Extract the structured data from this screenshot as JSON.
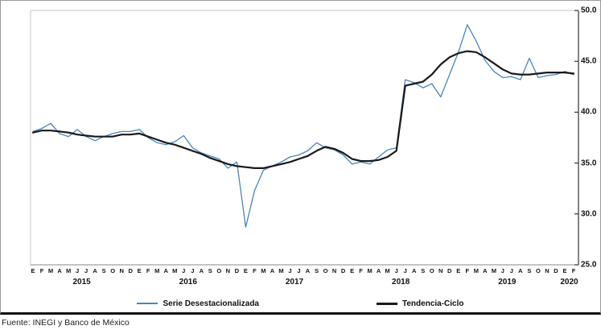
{
  "figure": {
    "source_note": "Fuente: INEGI y Banco de México"
  },
  "legend": [
    {
      "label": "Serie Desestacionalizada",
      "color": "#4a85bb"
    },
    {
      "label": "Tendencia-Ciclo",
      "color": "#1a1a1a"
    }
  ],
  "chart_data": {
    "type": "line",
    "title": "",
    "xlabel": "",
    "ylabel": "",
    "grid": false,
    "legend_position": "bottom",
    "y_axis": {
      "side": "right",
      "min": 25,
      "max": 50,
      "tick_labels": [
        "50.0",
        "45.0",
        "40.0",
        "35.0",
        "30.0",
        "25.0"
      ],
      "tick_values": [
        50,
        45,
        40,
        35,
        30,
        25
      ]
    },
    "x_axis": {
      "month_letters_pattern": [
        "E",
        "F",
        "M",
        "A",
        "M",
        "J",
        "J",
        "A",
        "S",
        "O",
        "N",
        "D"
      ],
      "year_groups": [
        {
          "label": "2015",
          "months": 12
        },
        {
          "label": "2016",
          "months": 12
        },
        {
          "label": "2017",
          "months": 12
        },
        {
          "label": "2018",
          "months": 12
        },
        {
          "label": "2019",
          "months": 12
        },
        {
          "label": "2020",
          "months": 2
        }
      ]
    },
    "series": [
      {
        "name": "Serie Desestacionalizada",
        "color": "#4a85bb",
        "stroke_width": 1.3,
        "values": [
          38.1,
          38.4,
          38.9,
          37.9,
          37.6,
          38.3,
          37.6,
          37.2,
          37.6,
          37.9,
          38.1,
          38.1,
          38.3,
          37.5,
          37.0,
          36.8,
          37.1,
          37.7,
          36.5,
          36.0,
          35.7,
          35.4,
          34.5,
          35.1,
          28.7,
          32.3,
          34.3,
          34.7,
          35.1,
          35.6,
          35.8,
          36.2,
          37.0,
          36.5,
          36.3,
          35.8,
          34.9,
          35.1,
          34.9,
          35.6,
          36.3,
          36.5,
          43.2,
          42.9,
          42.4,
          42.8,
          41.5,
          43.7,
          45.9,
          48.6,
          47.0,
          45.1,
          44.0,
          43.4,
          43.5,
          43.2,
          45.3,
          43.4,
          43.6,
          43.7,
          44.0,
          43.7
        ]
      },
      {
        "name": "Tendencia-Ciclo",
        "color": "#1a1a1a",
        "stroke_width": 2.2,
        "values": [
          38.0,
          38.2,
          38.2,
          38.1,
          38.0,
          37.8,
          37.7,
          37.6,
          37.6,
          37.6,
          37.8,
          37.8,
          37.9,
          37.6,
          37.3,
          37.0,
          36.8,
          36.5,
          36.2,
          35.9,
          35.5,
          35.2,
          34.9,
          34.7,
          34.6,
          34.5,
          34.5,
          34.7,
          34.9,
          35.1,
          35.4,
          35.7,
          36.2,
          36.6,
          36.4,
          36.0,
          35.4,
          35.2,
          35.2,
          35.3,
          35.6,
          36.2,
          42.6,
          42.8,
          43.0,
          43.7,
          44.7,
          45.4,
          45.8,
          46.0,
          45.9,
          45.4,
          44.8,
          44.2,
          43.8,
          43.7,
          43.7,
          43.8,
          43.9,
          43.9,
          43.9,
          43.8
        ]
      }
    ]
  }
}
